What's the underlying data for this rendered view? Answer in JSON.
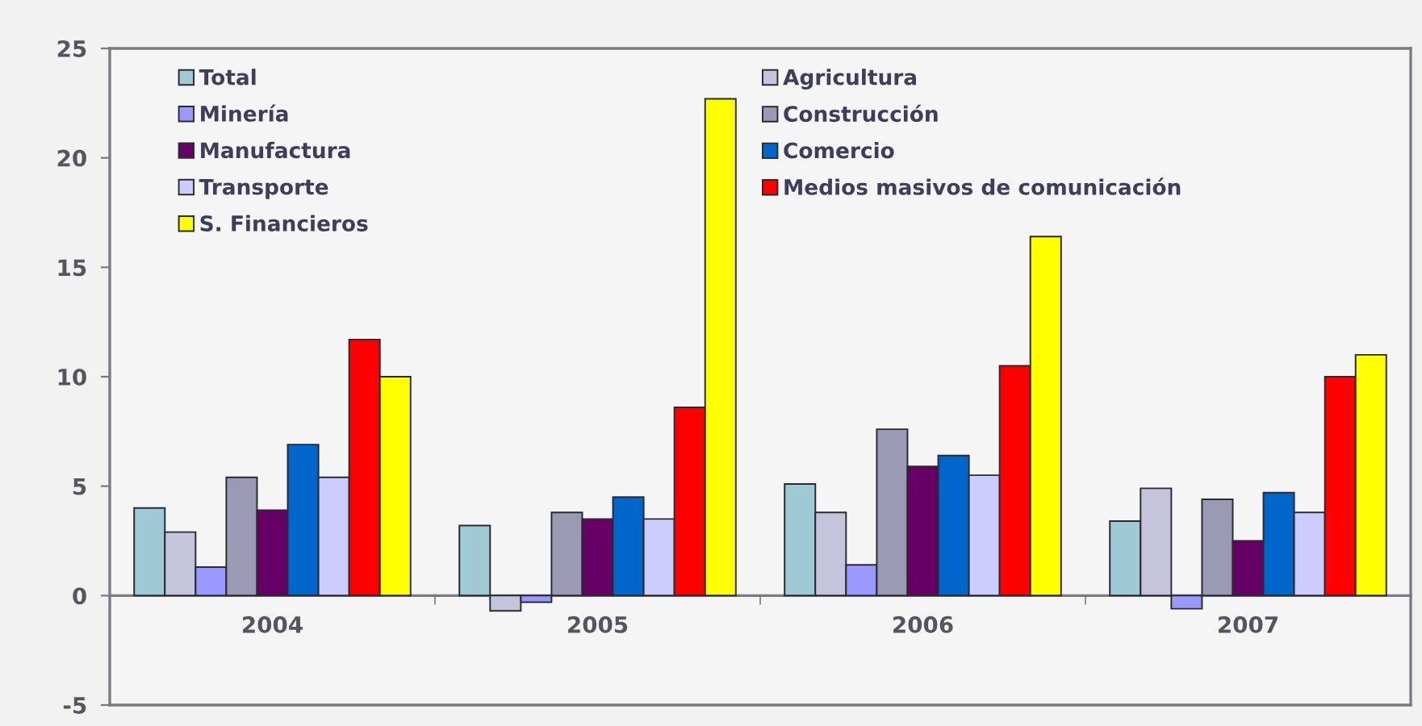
{
  "chart_data": {
    "type": "bar",
    "categories": [
      "2004",
      "2005",
      "2006",
      "2007"
    ],
    "series": [
      {
        "name": "Total",
        "color": "#9ec9d5",
        "values": [
          4.0,
          3.2,
          5.1,
          3.4
        ]
      },
      {
        "name": "Agricultura",
        "color": "#c4c4dc",
        "values": [
          2.9,
          -0.7,
          3.8,
          4.9
        ]
      },
      {
        "name": "Minería",
        "color": "#9999ff",
        "values": [
          1.3,
          -0.3,
          1.4,
          -0.6
        ]
      },
      {
        "name": "Construcción",
        "color": "#9a9ab4",
        "values": [
          5.4,
          3.8,
          7.6,
          4.4
        ]
      },
      {
        "name": "Manufactura",
        "color": "#660066",
        "values": [
          3.9,
          3.5,
          5.9,
          2.5
        ]
      },
      {
        "name": "Comercio",
        "color": "#0066cc",
        "values": [
          6.9,
          4.5,
          6.4,
          4.7
        ]
      },
      {
        "name": "Transporte",
        "color": "#ccccff",
        "values": [
          5.4,
          3.5,
          5.5,
          3.8
        ]
      },
      {
        "name": "Medios masivos de comunicación",
        "color": "#ff0000",
        "values": [
          11.7,
          8.6,
          10.5,
          10.0
        ]
      },
      {
        "name": "S. Financieros",
        "color": "#ffff00",
        "values": [
          10.0,
          22.7,
          16.4,
          11.0
        ]
      }
    ],
    "ylim": [
      -5,
      25
    ],
    "yticks": [
      -5,
      0,
      5,
      10,
      15,
      20,
      25
    ],
    "legend": "top left",
    "grid": false
  }
}
